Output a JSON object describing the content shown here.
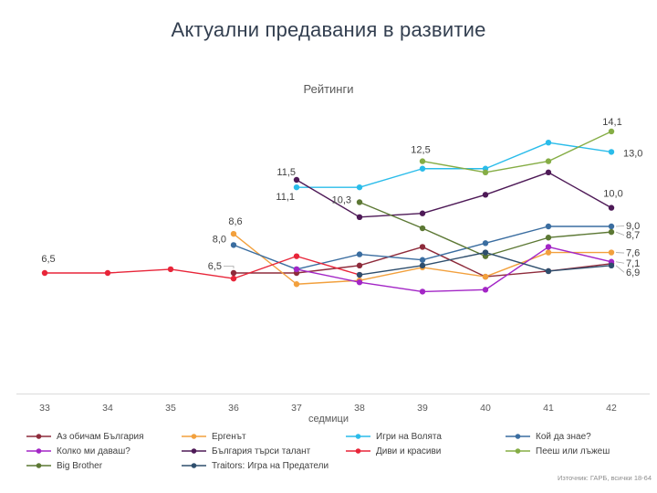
{
  "title": "Актуални предавания в развитие",
  "subtitle": "Рейтинги",
  "source": "Източник: ГАРБ, всички 18-64",
  "axis": {
    "xlabel": "седмици",
    "tick_color": "#595959",
    "line_color": "#D9D9D9",
    "label_color": "#404040",
    "leader_color": "#A6A6A6"
  },
  "chart_data": {
    "type": "line",
    "title": "Рейтинги",
    "xlabel": "седмици",
    "ylabel": "",
    "x": [
      33,
      34,
      35,
      36,
      37,
      38,
      39,
      40,
      41,
      42
    ],
    "ylim": [
      0,
      15
    ],
    "grid": false,
    "legend_position": "bottom",
    "series": [
      {
        "name": "Аз обичам България",
        "color": "#8E2B3B",
        "start_week": 36,
        "values": [
          6.5,
          6.5,
          6.9,
          7.9,
          6.3,
          6.6,
          7.0
        ],
        "labels": [
          {
            "week": 36,
            "text": "6,5",
            "dx": -13,
            "dy": -4,
            "anchor": "end",
            "leader": "elbow"
          }
        ]
      },
      {
        "name": "Ергенът",
        "color": "#F2A03D",
        "start_week": 36,
        "values": [
          8.6,
          5.9,
          6.1,
          6.8,
          6.3,
          7.6,
          7.6
        ],
        "labels": [
          {
            "week": 36,
            "text": "8,6",
            "dx": 2,
            "dy": -10,
            "anchor": "middle"
          },
          {
            "week": 42,
            "text": "7,6",
            "dx": 16,
            "dy": 4,
            "anchor": "start",
            "leader": "line"
          }
        ]
      },
      {
        "name": "Игри на Волята",
        "color": "#2ABCEA",
        "start_week": 37,
        "values": [
          11.1,
          11.1,
          12.1,
          12.1,
          13.5,
          13.0
        ],
        "labels": [
          {
            "week": 37,
            "text": "11,1",
            "dx": -2,
            "dy": 14,
            "anchor": "end"
          },
          {
            "week": 42,
            "text": "13,0",
            "dx": 13,
            "dy": 5,
            "anchor": "start"
          }
        ]
      },
      {
        "name": "Кой да знае?",
        "color": "#3A6DA0",
        "start_week": 36,
        "values": [
          8.0,
          6.7,
          7.5,
          7.2,
          8.1,
          9.0,
          9.0
        ],
        "labels": [
          {
            "week": 36,
            "text": "8,0",
            "dx": -8,
            "dy": -3,
            "anchor": "end"
          },
          {
            "week": 42,
            "text": "9,0",
            "dx": 16,
            "dy": 3,
            "anchor": "start",
            "leader": "line"
          }
        ]
      },
      {
        "name": "Колко ми даваш?",
        "color": "#A326C6",
        "start_week": 37,
        "values": [
          6.7,
          6.0,
          5.5,
          5.6,
          7.9,
          7.1
        ],
        "labels": [
          {
            "week": 42,
            "text": "7,1",
            "dx": 16,
            "dy": 5,
            "anchor": "start",
            "leader": "line"
          }
        ]
      },
      {
        "name": "България търси талант",
        "color": "#4E1A57",
        "start_week": 37,
        "values": [
          11.5,
          9.5,
          9.7,
          10.7,
          11.9,
          10.0
        ],
        "labels": [
          {
            "week": 37,
            "text": "11,5",
            "dx": -1,
            "dy": -5,
            "anchor": "end"
          },
          {
            "week": 42,
            "text": "10,0",
            "dx": 2,
            "dy": -12,
            "anchor": "middle"
          }
        ]
      },
      {
        "name": "Диви и красиви",
        "color": "#E82539",
        "start_week": 33,
        "values": [
          6.5,
          6.5,
          6.7,
          6.2,
          7.4,
          6.4
        ],
        "labels": [
          {
            "week": 33,
            "text": "6,5",
            "dx": 4,
            "dy": -12,
            "anchor": "middle"
          }
        ]
      },
      {
        "name": "Пееш или лъжеш",
        "color": "#85AD45",
        "start_week": 39,
        "values": [
          12.5,
          11.9,
          12.5,
          14.1
        ],
        "labels": [
          {
            "week": 39,
            "text": "12,5",
            "dx": -2,
            "dy": -9,
            "anchor": "middle"
          },
          {
            "week": 42,
            "text": "14,1",
            "dx": 1,
            "dy": -7,
            "anchor": "middle"
          }
        ]
      },
      {
        "name": "Big Brother",
        "color": "#5C7834",
        "start_week": 38,
        "values": [
          10.3,
          8.9,
          7.4,
          8.4,
          8.7
        ],
        "labels": [
          {
            "week": 38,
            "text": "10,3",
            "dx": -9,
            "dy": 1,
            "anchor": "end"
          },
          {
            "week": 42,
            "text": "8,7",
            "dx": 16,
            "dy": 7,
            "anchor": "start",
            "leader": "line"
          }
        ]
      },
      {
        "name": "Traitors: Игра на Предатели",
        "color": "#2E4E6D",
        "start_week": 38,
        "values": [
          6.4,
          6.9,
          7.6,
          6.6,
          6.9
        ],
        "labels": [
          {
            "week": 42,
            "text": "6,9",
            "dx": 16,
            "dy": 11,
            "anchor": "start",
            "leader": "line"
          }
        ]
      }
    ]
  }
}
